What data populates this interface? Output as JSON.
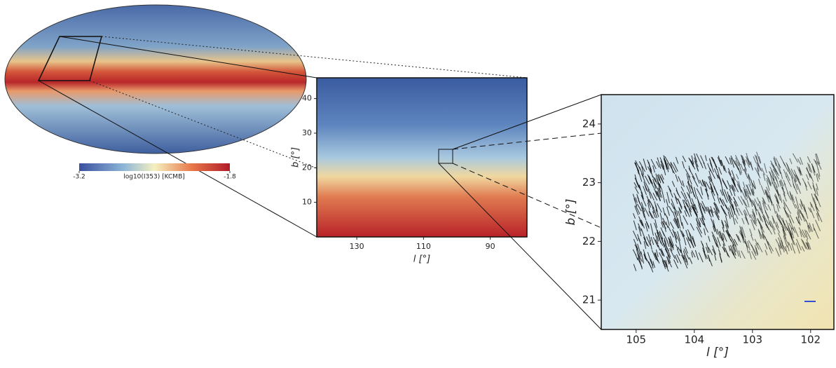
{
  "colorbar": {
    "lim": [
      -3.2,
      -1.8
    ],
    "ticks": [
      -3.2,
      -1.8
    ],
    "label": "log10(I353) [KCMB]"
  },
  "zoom_panel": {
    "xlim": [
      142,
      79
    ],
    "ylim": [
      0,
      46
    ],
    "xticks": [
      130,
      110,
      90
    ],
    "yticks": [
      10,
      20,
      30,
      40
    ],
    "xlabel": "l [°]",
    "ylabel": "b [°]"
  },
  "detail_panel": {
    "xlim": [
      105.6,
      101.6
    ],
    "ylim": [
      20.5,
      24.5
    ],
    "xticks": [
      105,
      104,
      103,
      102
    ],
    "yticks": [
      21,
      22,
      23,
      24
    ],
    "xlabel": "l [°]",
    "ylabel": "b [°]"
  }
}
